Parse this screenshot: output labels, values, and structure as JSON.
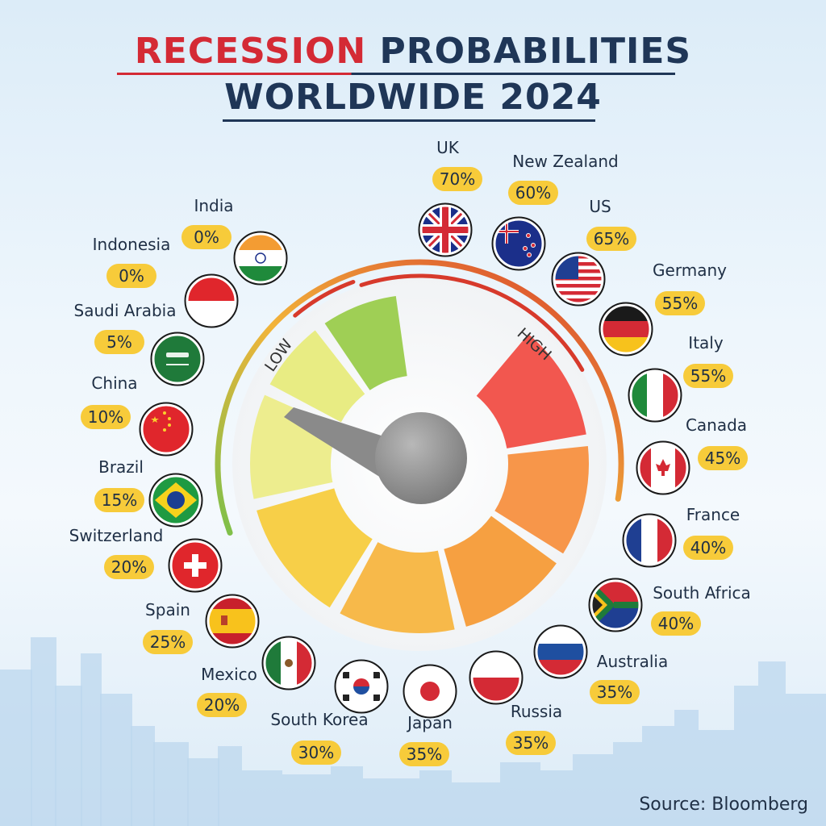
{
  "header": {
    "title_part1": "RECESSION",
    "title_part2": "PROBABILITIES",
    "title_line2": "WORLDWIDE 2024"
  },
  "gauge": {
    "low_label": "LOW",
    "high_label": "HIGH"
  },
  "source": "Source: Bloomberg",
  "colors": {
    "title_red": "#d42a35",
    "title_dark": "#1f3657",
    "badge": "#f7cb3a",
    "gauge_low": "#9ccf4f",
    "gauge_high": "#f2574f"
  },
  "chart_data": {
    "type": "gauge",
    "categories": [
      "India",
      "Indonesia",
      "Saudi Arabia",
      "China",
      "Brazil",
      "Switzerland",
      "Spain",
      "Mexico",
      "South Korea",
      "Japan",
      "Russia",
      "Australia",
      "South Africa",
      "France",
      "Canada",
      "Italy",
      "Germany",
      "US",
      "New Zealand",
      "UK"
    ],
    "labels": [
      "0%",
      "0%",
      "5%",
      "10%",
      "15%",
      "20%",
      "25%",
      "20%",
      "30%",
      "35%",
      "35%",
      "35%",
      "40%",
      "40%",
      "45%",
      "55%",
      "55%",
      "65%",
      "60%",
      "70%"
    ],
    "values": [
      0,
      0,
      5,
      10,
      15,
      20,
      25,
      20,
      30,
      35,
      35,
      35,
      40,
      40,
      45,
      55,
      55,
      65,
      60,
      70
    ],
    "flags": [
      "flag-india",
      "flag-indonesia",
      "flag-saudi-arabia",
      "flag-china",
      "flag-brazil",
      "flag-switzerland",
      "flag-spain",
      "flag-mexico",
      "flag-south-korea",
      "flag-japan",
      "flag-poland-style",
      "flag-russia",
      "flag-south-africa",
      "flag-france",
      "flag-canada",
      "flag-italy",
      "flag-germany",
      "flag-us",
      "flag-new-zealand",
      "flag-uk"
    ]
  }
}
